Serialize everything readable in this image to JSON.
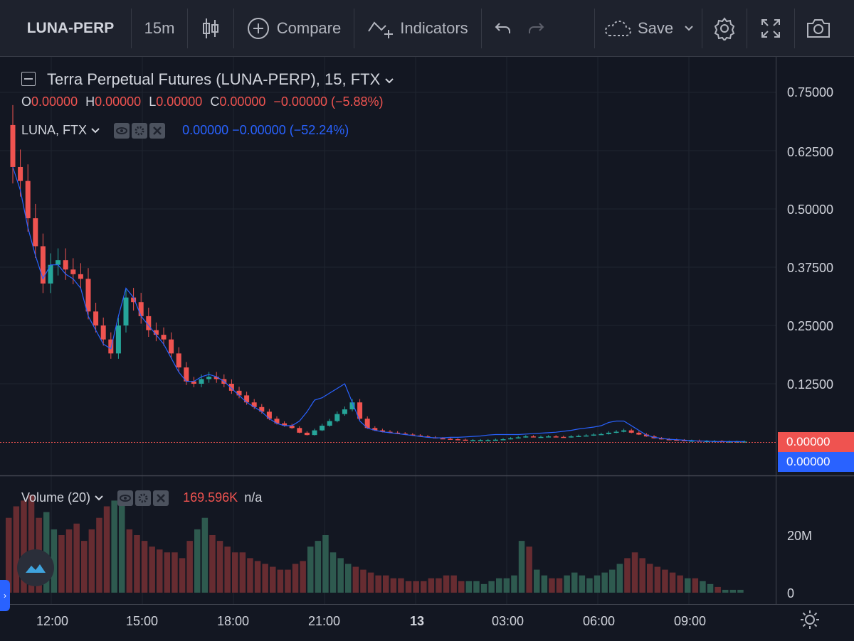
{
  "toolbar": {
    "symbol": "LUNA-PERP",
    "interval": "15m",
    "compare_label": "Compare",
    "indicators_label": "Indicators",
    "save_label": "Save"
  },
  "main_legend": {
    "title": "Terra Perpetual Futures (LUNA-PERP), 15, FTX",
    "o_label": "O",
    "o_value": "0.00000",
    "h_label": "H",
    "h_value": "0.00000",
    "l_label": "L",
    "l_value": "0.00000",
    "c_label": "C",
    "c_value": "0.00000",
    "change": "−0.00000 (−5.88%)"
  },
  "compare_legend": {
    "title": "LUNA, FTX",
    "values": "0.00000 −0.00000 (−52.24%)"
  },
  "volume_legend": {
    "title": "Volume (20)",
    "value": "169.596K",
    "value2": "n/a"
  },
  "price_axis": {
    "ticks": [
      "0.75000",
      "0.62500",
      "0.50000",
      "0.37500",
      "0.25000",
      "0.12500"
    ],
    "badge_perp": "0.00000",
    "badge_spot": "0.00000"
  },
  "volume_axis": {
    "ticks": [
      "20M",
      "0"
    ]
  },
  "time_axis": {
    "ticks": [
      "12:00",
      "15:00",
      "18:00",
      "21:00",
      "13",
      "03:00",
      "06:00",
      "09:00"
    ]
  },
  "colors": {
    "up": "#26a69a",
    "down": "#ef5350",
    "compare_line": "#2962ff",
    "background": "#131722",
    "toolbar": "#1e222d"
  },
  "chart_data": {
    "type": "candlestick",
    "symbol": "LUNA-PERP",
    "interval": "15",
    "exchange": "FTX",
    "ylim": [
      0,
      0.75
    ],
    "price_series": {
      "name": "LUNA-PERP",
      "close_approx": [
        0.59,
        0.56,
        0.48,
        0.42,
        0.34,
        0.38,
        0.39,
        0.37,
        0.36,
        0.35,
        0.28,
        0.25,
        0.22,
        0.19,
        0.25,
        0.31,
        0.3,
        0.27,
        0.24,
        0.23,
        0.22,
        0.19,
        0.16,
        0.13,
        0.125,
        0.135,
        0.14,
        0.135,
        0.125,
        0.11,
        0.1,
        0.085,
        0.075,
        0.065,
        0.05,
        0.04,
        0.035,
        0.03,
        0.02,
        0.015,
        0.025,
        0.035,
        0.045,
        0.06,
        0.07,
        0.085,
        0.05,
        0.03,
        0.025,
        0.022,
        0.02,
        0.018,
        0.016,
        0.014,
        0.012,
        0.01,
        0.008,
        0.007,
        0.006,
        0.005,
        0.004,
        0.004,
        0.004,
        0.004,
        0.005,
        0.006,
        0.008,
        0.01,
        0.012,
        0.011,
        0.011,
        0.012,
        0.011,
        0.01,
        0.012,
        0.013,
        0.014,
        0.016,
        0.017,
        0.02,
        0.022,
        0.025,
        0.02,
        0.016,
        0.012,
        0.008,
        0.006,
        0.005,
        0.004,
        0.003,
        0.003,
        0.002,
        0.002,
        0.002,
        0.001,
        0.001,
        0.001,
        0.001
      ]
    },
    "compare_series": {
      "name": "LUNA, FTX",
      "values_approx": [
        0.59,
        0.54,
        0.46,
        0.4,
        0.35,
        0.38,
        0.38,
        0.36,
        0.35,
        0.33,
        0.27,
        0.24,
        0.21,
        0.2,
        0.27,
        0.33,
        0.31,
        0.27,
        0.25,
        0.23,
        0.21,
        0.18,
        0.15,
        0.13,
        0.13,
        0.14,
        0.145,
        0.14,
        0.13,
        0.115,
        0.1,
        0.085,
        0.075,
        0.065,
        0.05,
        0.04,
        0.035,
        0.035,
        0.045,
        0.065,
        0.09,
        0.095,
        0.105,
        0.115,
        0.125,
        0.085,
        0.045,
        0.03,
        0.025,
        0.022,
        0.02,
        0.018,
        0.016,
        0.014,
        0.012,
        0.01,
        0.009,
        0.009,
        0.01,
        0.01,
        0.011,
        0.012,
        0.013,
        0.015,
        0.016,
        0.016,
        0.016,
        0.016,
        0.017,
        0.018,
        0.019,
        0.02,
        0.021,
        0.023,
        0.025,
        0.028,
        0.03,
        0.032,
        0.035,
        0.042,
        0.045,
        0.045,
        0.035,
        0.025,
        0.015,
        0.01,
        0.008,
        0.006,
        0.005,
        0.004,
        0.003,
        0.002,
        0.002,
        0.001,
        0.001,
        0.001,
        0.001,
        0.001
      ]
    },
    "volume": {
      "name": "Volume (20)",
      "ylim": [
        0,
        36000000
      ],
      "values_approx": [
        26,
        30,
        32,
        34,
        26,
        28,
        22,
        20,
        22,
        24,
        18,
        22,
        26,
        30,
        32,
        35,
        22,
        20,
        18,
        16,
        15,
        14,
        14,
        12,
        18,
        22,
        26,
        20,
        18,
        16,
        14,
        14,
        12,
        11,
        10,
        9,
        8,
        8,
        10,
        11,
        16,
        18,
        20,
        14,
        12,
        10,
        9,
        8,
        7,
        6,
        6,
        5,
        5,
        4,
        4,
        4,
        5,
        5,
        6,
        6,
        4,
        4,
        4,
        3,
        4,
        5,
        5,
        6,
        18,
        16,
        8,
        6,
        5,
        5,
        6,
        7,
        6,
        5,
        6,
        7,
        8,
        10,
        12,
        14,
        12,
        10,
        9,
        8,
        7,
        6,
        5,
        5,
        4,
        3,
        2,
        1,
        1,
        1
      ],
      "unit": "M"
    }
  }
}
